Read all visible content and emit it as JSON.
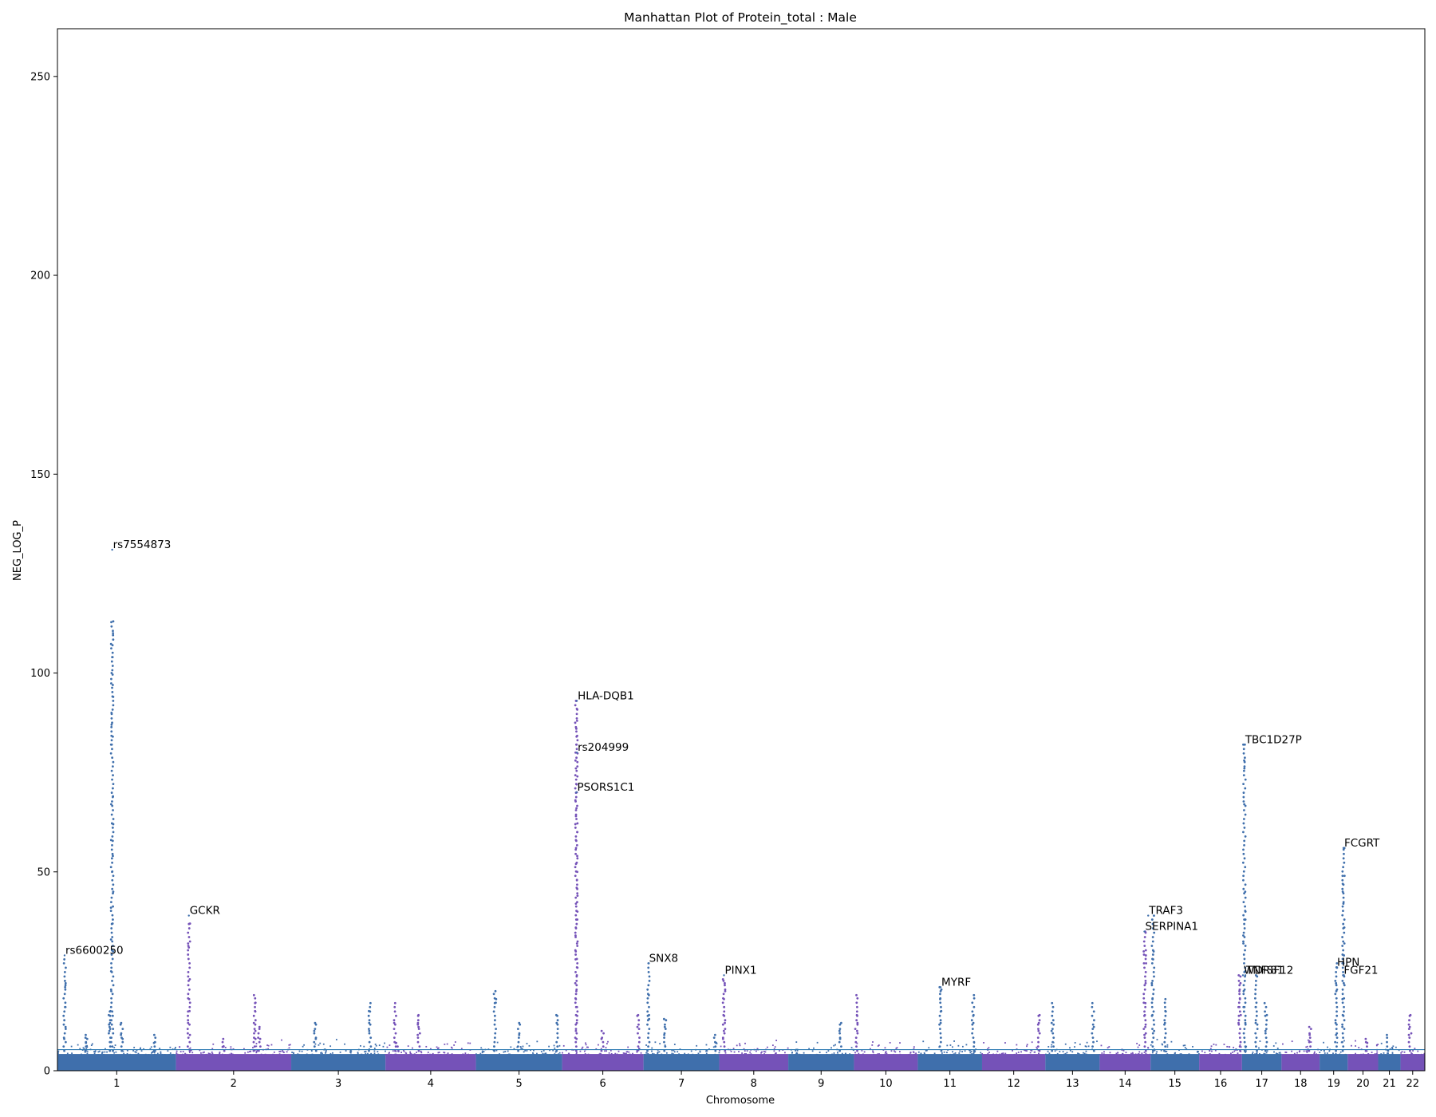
{
  "chart_data": {
    "type": "scatter",
    "title": "Manhattan Plot of Protein_total : Male",
    "xlabel": "Chromosome",
    "ylabel": "NEG_LOG_P",
    "ylim": [
      0,
      262
    ],
    "yticks": [
      0,
      50,
      100,
      150,
      200,
      250
    ],
    "threshold": 5.3,
    "grid": false,
    "colors": {
      "odd": "#3f6fac",
      "even": "#7552b8",
      "threshold": "#2e7bb3"
    },
    "chromosomes": [
      "1",
      "2",
      "3",
      "4",
      "5",
      "6",
      "7",
      "8",
      "9",
      "10",
      "11",
      "12",
      "13",
      "14",
      "15",
      "16",
      "17",
      "18",
      "19",
      "20",
      "21",
      "22"
    ],
    "chromosome_lengths_mb": [
      249,
      242,
      198,
      190,
      181,
      171,
      159,
      145,
      138,
      134,
      135,
      133,
      114,
      107,
      102,
      90,
      83,
      80,
      59,
      64,
      47,
      51
    ],
    "peaks": [
      {
        "chr": 1,
        "pos": 15,
        "neg_log_p": [
          28,
          22,
          21,
          16,
          11,
          8
        ]
      },
      {
        "chr": 1,
        "pos": 60,
        "neg_log_p": [
          6,
          9,
          7,
          5,
          8
        ]
      },
      {
        "chr": 1,
        "pos": 110,
        "neg_log_p": [
          15,
          12,
          10,
          14,
          11
        ]
      },
      {
        "chr": 1,
        "pos": 115,
        "neg_log_p": [
          113,
          110,
          107,
          104,
          100,
          97,
          94,
          90,
          87,
          84,
          82,
          69,
          67,
          62,
          58,
          54,
          50,
          45,
          41,
          37,
          33,
          30,
          25,
          20
        ]
      },
      {
        "chr": 1,
        "pos": 135,
        "neg_log_p": [
          12,
          9,
          8
        ]
      },
      {
        "chr": 1,
        "pos": 205,
        "neg_log_p": [
          9,
          7
        ]
      },
      {
        "chr": 2,
        "pos": 27,
        "neg_log_p": [
          37,
          32,
          31,
          23,
          18,
          15,
          12,
          9
        ]
      },
      {
        "chr": 2,
        "pos": 100,
        "neg_log_p": [
          8,
          6
        ]
      },
      {
        "chr": 2,
        "pos": 165,
        "neg_log_p": [
          19,
          17,
          15,
          12,
          10,
          8
        ]
      },
      {
        "chr": 2,
        "pos": 175,
        "neg_log_p": [
          11,
          8
        ]
      },
      {
        "chr": 3,
        "pos": 50,
        "neg_log_p": [
          12,
          10,
          8
        ]
      },
      {
        "chr": 3,
        "pos": 165,
        "neg_log_p": [
          17,
          15,
          12,
          10
        ]
      },
      {
        "chr": 4,
        "pos": 20,
        "neg_log_p": [
          17,
          12
        ]
      },
      {
        "chr": 4,
        "pos": 70,
        "neg_log_p": [
          14,
          12,
          11,
          9
        ]
      },
      {
        "chr": 4,
        "pos": 25,
        "neg_log_p": [
          7
        ]
      },
      {
        "chr": 5,
        "pos": 40,
        "neg_log_p": [
          20,
          18,
          17
        ]
      },
      {
        "chr": 5,
        "pos": 90,
        "neg_log_p": [
          12,
          9
        ]
      },
      {
        "chr": 5,
        "pos": 170,
        "neg_log_p": [
          14,
          12
        ]
      },
      {
        "chr": 6,
        "pos": 30,
        "neg_log_p": [
          93,
          91,
          88,
          86,
          84,
          82,
          80,
          78,
          76,
          74,
          72,
          70,
          68,
          66,
          64,
          62,
          60,
          58,
          56,
          54,
          52,
          50,
          48,
          46,
          44,
          42,
          40,
          38,
          36,
          34,
          32,
          30,
          28,
          26,
          24,
          22,
          20,
          18,
          16,
          14,
          12,
          10,
          8
        ]
      },
      {
        "chr": 6,
        "pos": 85,
        "neg_log_p": [
          10,
          8
        ]
      },
      {
        "chr": 6,
        "pos": 160,
        "neg_log_p": [
          14,
          11
        ]
      },
      {
        "chr": 7,
        "pos": 10,
        "neg_log_p": [
          27,
          19,
          14,
          13
        ]
      },
      {
        "chr": 7,
        "pos": 45,
        "neg_log_p": [
          13,
          11,
          9
        ]
      },
      {
        "chr": 7,
        "pos": 150,
        "neg_log_p": [
          9,
          7
        ]
      },
      {
        "chr": 8,
        "pos": 10,
        "neg_log_p": [
          23,
          22,
          20,
          18,
          16,
          14,
          12,
          10,
          8
        ]
      },
      {
        "chr": 9,
        "pos": 110,
        "neg_log_p": [
          12,
          10,
          8
        ]
      },
      {
        "chr": 10,
        "pos": 5,
        "neg_log_p": [
          19,
          14,
          12,
          10
        ]
      },
      {
        "chr": 11,
        "pos": 48,
        "neg_log_p": [
          21,
          20,
          18,
          15,
          12
        ]
      },
      {
        "chr": 11,
        "pos": 116,
        "neg_log_p": [
          19,
          14,
          12
        ]
      },
      {
        "chr": 12,
        "pos": 120,
        "neg_log_p": [
          14,
          12,
          10
        ]
      },
      {
        "chr": 13,
        "pos": 15,
        "neg_log_p": [
          17,
          12,
          10
        ]
      },
      {
        "chr": 13,
        "pos": 100,
        "neg_log_p": [
          17,
          11
        ]
      },
      {
        "chr": 14,
        "pos": 95,
        "neg_log_p": [
          35,
          30,
          29,
          27,
          22,
          17,
          14,
          11,
          9
        ]
      },
      {
        "chr": 15,
        "pos": 5,
        "neg_log_p": [
          39,
          30,
          28,
          22,
          18,
          14,
          10
        ]
      },
      {
        "chr": 15,
        "pos": 30,
        "neg_log_p": [
          18,
          15,
          12
        ]
      },
      {
        "chr": 16,
        "pos": 85,
        "neg_log_p": [
          24,
          22,
          20,
          18,
          16,
          14,
          12
        ]
      },
      {
        "chr": 17,
        "pos": 5,
        "neg_log_p": [
          82,
          78,
          76,
          67,
          45,
          40,
          38,
          34,
          32,
          25,
          20,
          16,
          12
        ]
      },
      {
        "chr": 17,
        "pos": 30,
        "neg_log_p": [
          24,
          16,
          12
        ]
      },
      {
        "chr": 17,
        "pos": 50,
        "neg_log_p": [
          17,
          14,
          10
        ]
      },
      {
        "chr": 18,
        "pos": 60,
        "neg_log_p": [
          11,
          9
        ]
      },
      {
        "chr": 19,
        "pos": 35,
        "neg_log_p": [
          27,
          26,
          22,
          20,
          12,
          9
        ]
      },
      {
        "chr": 19,
        "pos": 50,
        "neg_log_p": [
          56,
          49,
          47,
          45,
          42,
          36,
          32,
          29,
          27,
          24,
          22,
          18,
          14,
          11
        ]
      },
      {
        "chr": 20,
        "pos": 40,
        "neg_log_p": [
          8,
          7
        ]
      },
      {
        "chr": 21,
        "pos": 20,
        "neg_log_p": [
          9
        ]
      },
      {
        "chr": 22,
        "pos": 20,
        "neg_log_p": [
          14,
          11,
          9
        ]
      }
    ],
    "annotations": [
      {
        "label": "rs6600250",
        "chr": 1,
        "pos": 15,
        "y": 29
      },
      {
        "label": "rs7554873",
        "chr": 1,
        "pos": 115,
        "y": 131
      },
      {
        "label": "GCKR",
        "chr": 2,
        "pos": 27,
        "y": 39
      },
      {
        "label": "HLA-DQB1",
        "chr": 6,
        "pos": 31,
        "y": 93
      },
      {
        "label": "rs204999",
        "chr": 6,
        "pos": 31,
        "y": 80
      },
      {
        "label": "PSORS1C1",
        "chr": 6,
        "pos": 30,
        "y": 70
      },
      {
        "label": "SNX8",
        "chr": 7,
        "pos": 10,
        "y": 27
      },
      {
        "label": "PINX1",
        "chr": 8,
        "pos": 10,
        "y": 24
      },
      {
        "label": "MYRF",
        "chr": 11,
        "pos": 48,
        "y": 21
      },
      {
        "label": "TRAF3",
        "chr": 14,
        "pos": 102,
        "y": 39
      },
      {
        "label": "SERPINA1",
        "chr": 14,
        "pos": 94,
        "y": 35
      },
      {
        "label": "TBC1D27P",
        "chr": 17,
        "pos": 5,
        "y": 82
      },
      {
        "label": "WDR81",
        "chr": 17,
        "pos": 2,
        "y": 24
      },
      {
        "label": "TNFSF12",
        "chr": 17,
        "pos": 7,
        "y": 24
      },
      {
        "label": "FCGRT",
        "chr": 19,
        "pos": 50,
        "y": 56
      },
      {
        "label": "HPN",
        "chr": 19,
        "pos": 35,
        "y": 26
      },
      {
        "label": "FGF21",
        "chr": 19,
        "pos": 49,
        "y": 24
      }
    ]
  }
}
